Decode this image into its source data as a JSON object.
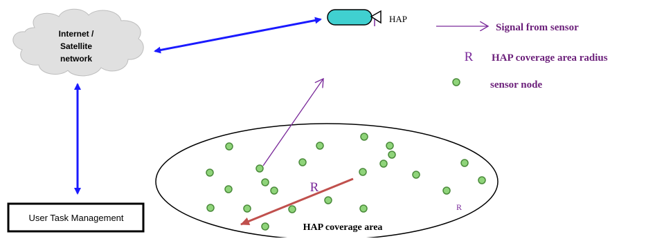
{
  "cloud": {
    "line1": "Internet /",
    "line2": "Satellite",
    "line3": "network"
  },
  "hap": {
    "label": "HAP"
  },
  "user_box": {
    "label": "User Task Management"
  },
  "coverage": {
    "label": "HAP coverage area",
    "radius_label": "R",
    "small_r_label": "R"
  },
  "legend": {
    "signal_label": "Signal from sensor",
    "radius_symbol": "R",
    "radius_label": "HAP coverage area radius",
    "sensor_label": "sensor node"
  },
  "colors": {
    "blue_link": "#1a1aff",
    "purple": "#7a2a9a",
    "legend_text": "#6b1f7a",
    "radius_arrow": "#c0504d",
    "sensor_fill": "#8fd47a",
    "sensor_stroke": "#4a8a3a",
    "hap_fill": "#40d0d0",
    "cloud_fill": "#e0e0e0"
  }
}
